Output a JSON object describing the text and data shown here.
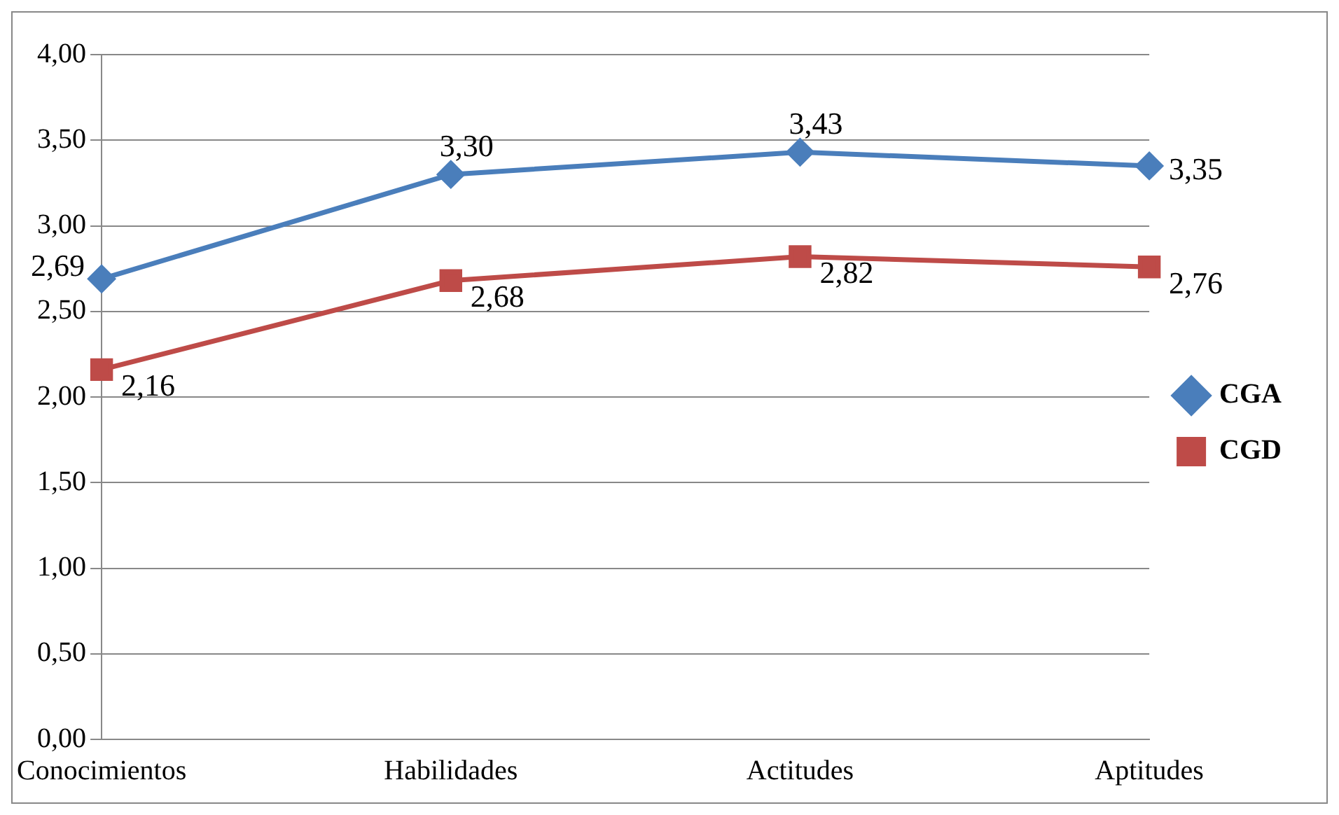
{
  "chart_data": {
    "type": "line",
    "categories": [
      "Conocimientos",
      "Habilidades",
      "Actitudes",
      "Aptitudes"
    ],
    "series": [
      {
        "name": "CGA",
        "color": "#4a7ebb",
        "marker": "diamond",
        "values": [
          2.69,
          3.3,
          3.43,
          3.35
        ],
        "value_labels": [
          "2,69",
          "3,30",
          "3,43",
          "3,35"
        ]
      },
      {
        "name": "CGD",
        "color": "#be4b48",
        "marker": "square",
        "values": [
          2.16,
          2.68,
          2.82,
          2.76
        ],
        "value_labels": [
          "2,16",
          "2,68",
          "2,82",
          "2,76"
        ]
      }
    ],
    "ylim": [
      0,
      4
    ],
    "yticks": [
      {
        "value": 0,
        "label": "0,00"
      },
      {
        "value": 0.5,
        "label": "0,50"
      },
      {
        "value": 1,
        "label": "1,00"
      },
      {
        "value": 1.5,
        "label": "1,50"
      },
      {
        "value": 2,
        "label": "2,00"
      },
      {
        "value": 2.5,
        "label": "2,50"
      },
      {
        "value": 3,
        "label": "3,00"
      },
      {
        "value": 3.5,
        "label": "3,50"
      },
      {
        "value": 4,
        "label": "4,00"
      }
    ],
    "grid": "y",
    "legend": "right",
    "line_style": "solid"
  }
}
